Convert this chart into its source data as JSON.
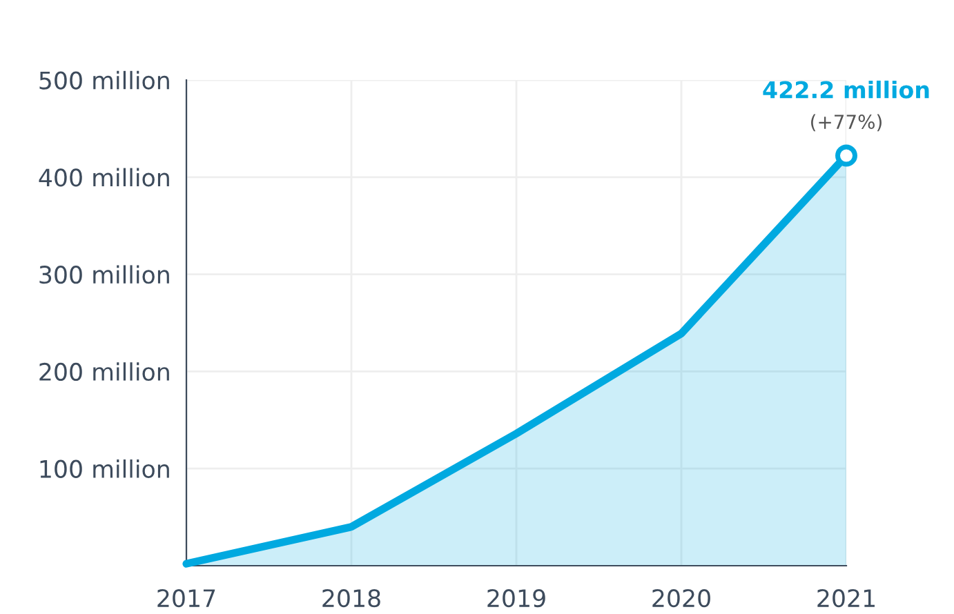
{
  "chart_data": {
    "type": "area",
    "categories": [
      "2017",
      "2018",
      "2019",
      "2020",
      "2021"
    ],
    "series": [
      {
        "color": "#00a9e0",
        "values": [
          2,
          40,
          136,
          239,
          422.2
        ]
      }
    ],
    "ylim": [
      0,
      500
    ],
    "yticks": [
      {
        "value": 100,
        "label": "100 million"
      },
      {
        "value": 200,
        "label": "200 million"
      },
      {
        "value": 300,
        "label": "300 million"
      },
      {
        "value": 400,
        "label": "400 million"
      },
      {
        "value": 500,
        "label": "500 million"
      }
    ],
    "grid": true,
    "legend": false,
    "marker": "none",
    "line_style": "solid",
    "annotations": [
      "422.2 million",
      "(+77%)"
    ]
  }
}
